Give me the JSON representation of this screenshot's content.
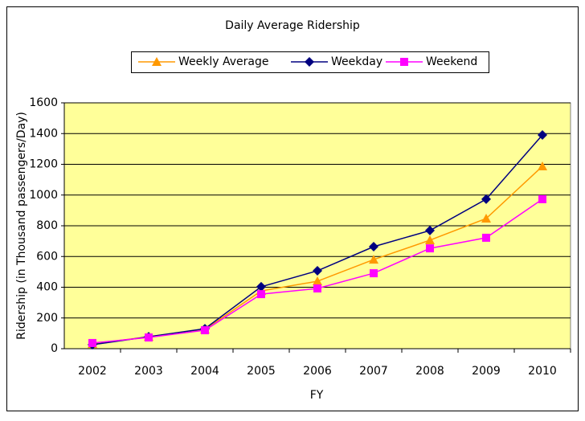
{
  "chart_data": {
    "type": "line",
    "title": "Daily Average Ridership",
    "x_label": "FY",
    "y_label": "Ridership (in Thousand passengers/Day)",
    "categories": [
      "2002",
      "2003",
      "2004",
      "2005",
      "2006",
      "2007",
      "2008",
      "2009",
      "2010"
    ],
    "series": [
      {
        "name": "Weekly Average",
        "color": "#ff9900",
        "marker": "triangle",
        "values": [
          31,
          78,
          125,
          376,
          439,
          580,
          706,
          847,
          1187
        ]
      },
      {
        "name": "Weekday",
        "color": "#000080",
        "marker": "diamond",
        "values": [
          26,
          78,
          130,
          403,
          507,
          664,
          769,
          973,
          1391
        ]
      },
      {
        "name": "Weekend",
        "color": "#ff00ff",
        "marker": "square",
        "values": [
          37,
          73,
          120,
          355,
          392,
          491,
          653,
          722,
          973
        ]
      }
    ],
    "ylim": [
      0,
      1600
    ],
    "yticks": [
      0,
      200,
      400,
      600,
      800,
      1000,
      1200,
      1400,
      1600
    ],
    "grid": true,
    "legend": "top",
    "plot_background": "#ffff99"
  }
}
